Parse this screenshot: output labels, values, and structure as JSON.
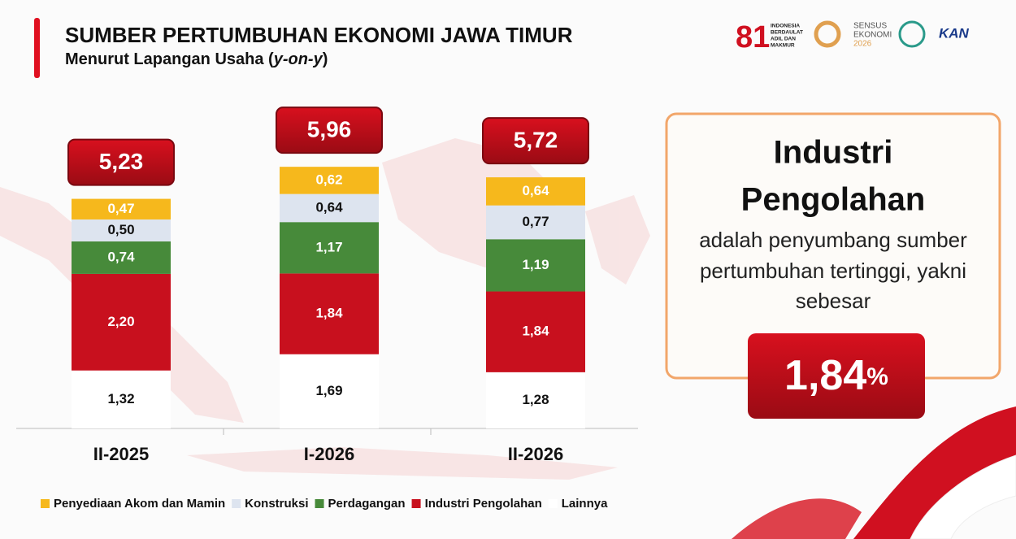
{
  "chart_data": {
    "type": "stacked-bar",
    "title": "SUMBER PERTUMBUHAN EKONOMI JAWA TIMUR",
    "subtitle": [
      "Menurut Lapangan Usaha (",
      "y-on-y",
      ")"
    ],
    "categories": [
      "II-2025",
      "I-2026",
      "II-2026"
    ],
    "series": [
      {
        "name": "Penyediaan Akom dan Mamin",
        "color": "#f6b81c",
        "values": [
          0.47,
          0.62,
          0.64
        ],
        "value_labels": [
          "0,47",
          "0,62",
          "0,64"
        ]
      },
      {
        "name": "Konstruksi",
        "color": "#dde4ef",
        "values": [
          0.5,
          0.64,
          0.77
        ],
        "value_labels": [
          "0,50",
          "0,64",
          "0,77"
        ]
      },
      {
        "name": "Perdagangan",
        "color": "#478a3a",
        "values": [
          0.74,
          1.17,
          1.19
        ],
        "value_labels": [
          "0,74",
          "1,17",
          "1,19"
        ]
      },
      {
        "name": "Industri Pengolahan",
        "color": "#c8101e",
        "values": [
          2.2,
          1.84,
          1.84
        ],
        "value_labels": [
          "2,20",
          "1,84",
          "1,84"
        ]
      },
      {
        "name": "Lainnya",
        "color": "#ffffff",
        "values": [
          1.32,
          1.69,
          1.28
        ],
        "value_labels": [
          "1,32",
          "1,69",
          "1,28"
        ]
      }
    ],
    "totals": [
      5.23,
      5.96,
      5.72
    ],
    "total_labels": [
      "5,23",
      "5,96",
      "5,72"
    ],
    "highlight": {
      "title": [
        "Industri",
        "Pengolahan"
      ],
      "text": [
        "adalah penyumbang sumber",
        "pertumbuhan tertinggi, yakni",
        "sebesar"
      ],
      "value": "1,84",
      "unit": "%"
    },
    "logos": {
      "hut": [
        "INDONESIA",
        "BERDAULAT",
        "ADIL DAN",
        "MAKMUR"
      ],
      "sensus": [
        "SENSUS",
        "EKONOMI",
        "2026"
      ],
      "kan": "KAN"
    }
  }
}
